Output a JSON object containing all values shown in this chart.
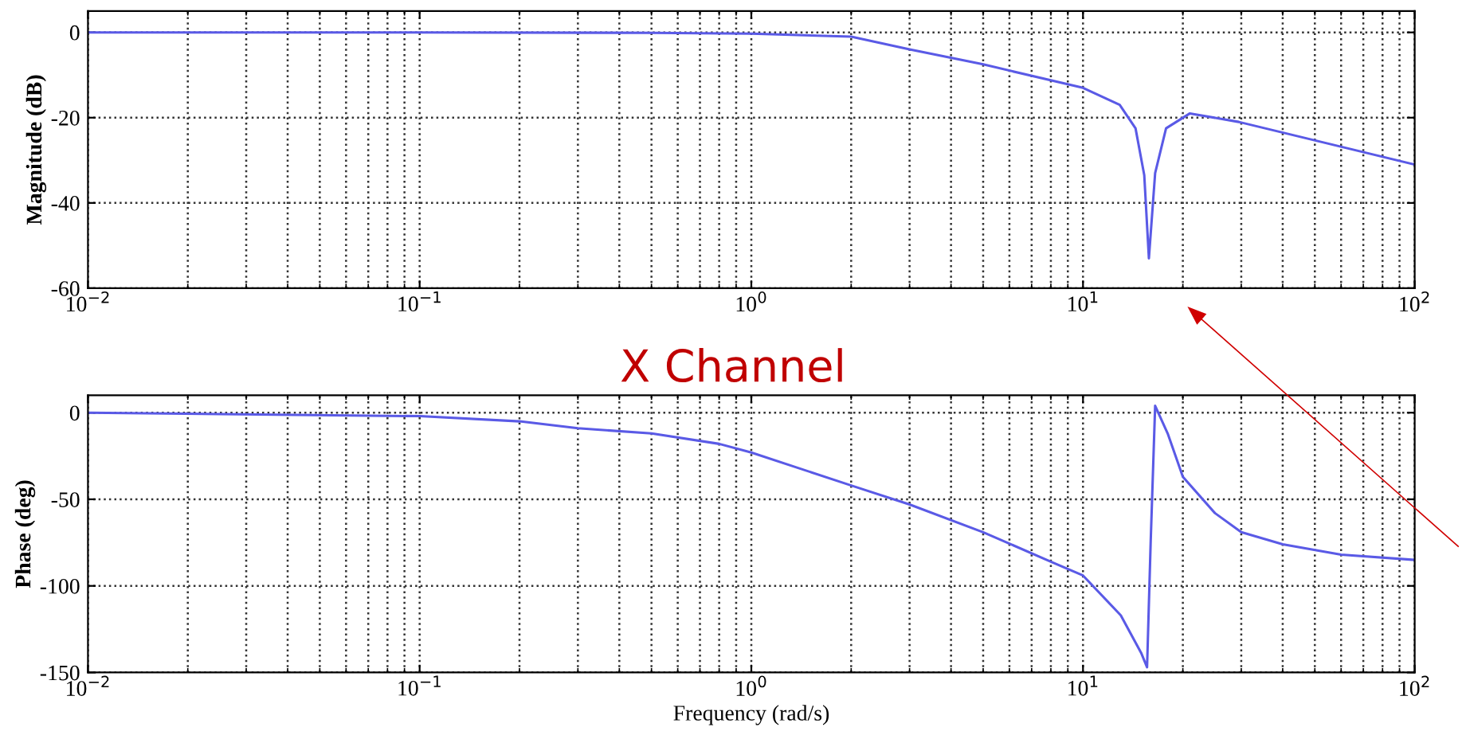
{
  "chart_data": [
    {
      "type": "line",
      "ylabel": "Magnitude (dB)",
      "log": "x",
      "grid": true,
      "line_style": "solid",
      "marker": "none",
      "annotations": [
        "X Channel"
      ],
      "xlim": [
        0.01,
        100
      ],
      "xticks": [
        {
          "value": 0.01,
          "label": "10$^{−2}$"
        },
        {
          "value": 0.1,
          "label": "10$^{−1}$"
        },
        {
          "value": 1,
          "label": "10$^{0}$"
        },
        {
          "value": 10,
          "label": "10$^{1}$"
        },
        {
          "value": 100,
          "label": "10$^{2}$"
        }
      ],
      "ylim": [
        -60,
        5
      ],
      "yticks": [
        -60,
        -40,
        -20,
        0
      ],
      "series": [
        {
          "color": "#5a5ae6",
          "x": [
            0.01,
            0.1,
            0.5,
            1,
            2,
            3,
            5,
            10,
            12.9,
            14.4,
            15.3,
            15.8,
            16.5,
            17.8,
            21,
            29.5,
            100
          ],
          "values": [
            0,
            0,
            -0.1,
            -0.3,
            -1,
            -4,
            -7.5,
            -13,
            -17,
            -22.5,
            -33.5,
            -53,
            -33,
            -22.5,
            -19,
            -21,
            -31
          ]
        }
      ]
    },
    {
      "type": "line",
      "ylabel": "Phase (deg)",
      "xlabel": "Frequency (rad/s)",
      "log": "x",
      "grid": true,
      "line_style": "solid",
      "marker": "none",
      "xlim": [
        0.01,
        100
      ],
      "xticks": [
        {
          "value": 0.01,
          "label": "10$^{−2}$"
        },
        {
          "value": 0.1,
          "label": "10$^{−1}$"
        },
        {
          "value": 1,
          "label": "10$^{0}$"
        },
        {
          "value": 10,
          "label": "10$^{1}$"
        },
        {
          "value": 100,
          "label": "10$^{2}$"
        }
      ],
      "ylim": [
        -150,
        10
      ],
      "yticks": [
        -150,
        -100,
        -50,
        0
      ],
      "series": [
        {
          "color": "#5a5ae6",
          "x": [
            0.01,
            0.1,
            0.2,
            0.3,
            0.5,
            0.8,
            1,
            2,
            3,
            5,
            8,
            10,
            13,
            15,
            15.6,
            16,
            16.5,
            18,
            20,
            25,
            30,
            40,
            60,
            100
          ],
          "values": [
            0,
            -2,
            -5,
            -9,
            -12,
            -18,
            -23,
            -42,
            -53,
            -69,
            -86,
            -94,
            -117,
            -139,
            -147,
            -74,
            4,
            -12,
            -37,
            -58,
            -69,
            -76,
            -82,
            -85
          ]
        }
      ]
    }
  ]
}
